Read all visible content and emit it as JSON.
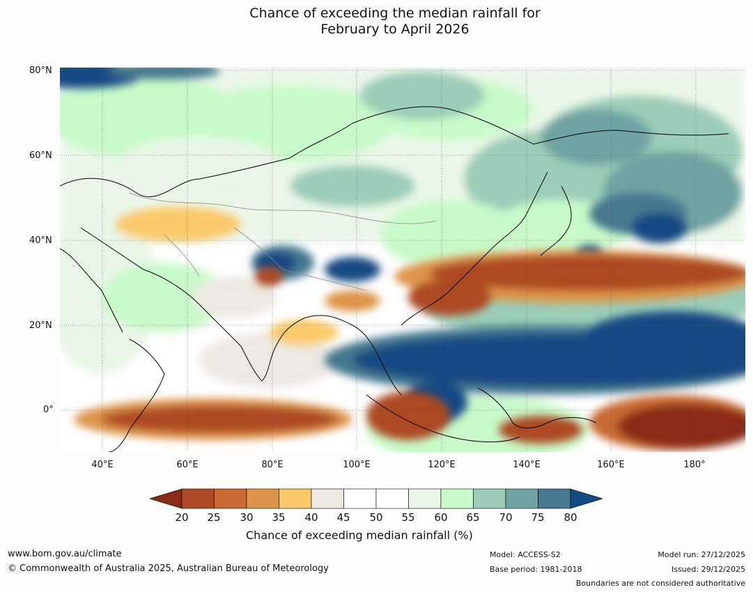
{
  "title": {
    "line1": "Chance of exceeding the median rainfall for",
    "line2": "February to April 2026"
  },
  "map": {
    "lat_labels": [
      "80°N",
      "60°N",
      "40°N",
      "20°N",
      "0°"
    ],
    "lon_labels": [
      "40°E",
      "60°E",
      "80°E",
      "100°E",
      "120°E",
      "140°E",
      "160°E",
      "180°"
    ]
  },
  "colorbar": {
    "ticks": [
      "20",
      "25",
      "30",
      "35",
      "40",
      "45",
      "50",
      "55",
      "60",
      "65",
      "70",
      "75",
      "80"
    ],
    "label": "Chance of exceeding median rainfall (%)",
    "colors": [
      "#8b2b17",
      "#ad4a24",
      "#c86a32",
      "#de9448",
      "#fbc96a",
      "#ece9e2",
      "#ffffff",
      "#ffffff",
      "#e8f6e6",
      "#c8fbc9",
      "#9bcdb8",
      "#6fa3a3",
      "#44798f",
      "#124a83"
    ]
  },
  "footer": {
    "website": "www.bom.gov.au/climate",
    "copyright": "© Commonwealth of Australia 2025, Australian Bureau of Meteorology",
    "model": "Model: ACCESS-S2",
    "base_period": "Base period: 1981-2018",
    "model_run": "Model run: 27/12/2025",
    "issued": "Issued: 29/12/2025",
    "disclaimer": "Boundaries are not considered authoritative"
  }
}
